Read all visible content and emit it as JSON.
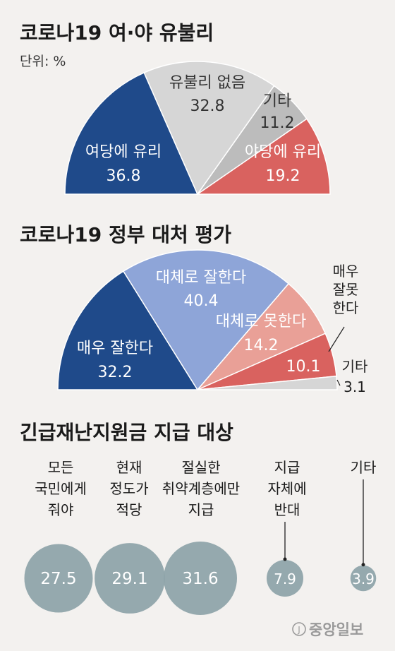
{
  "unit_label": "단위: %",
  "credit": "중앙일보",
  "chart_data": [
    {
      "type": "pie",
      "variant": "semicircle",
      "title": "코로나19 여·야 유불리",
      "slices": [
        {
          "label": "여당에 유리",
          "value": 36.8,
          "color": "#1f4a8a",
          "text_color": "#ffffff"
        },
        {
          "label": "유불리 없음",
          "value": 32.8,
          "color": "#d6d6d6",
          "text_color": "#333333"
        },
        {
          "label": "기타",
          "value": 11.2,
          "color": "#bcbcbc",
          "text_color": "#333333"
        },
        {
          "label": "야당에 유리",
          "value": 19.2,
          "color": "#d9625f",
          "text_color": "#ffffff"
        }
      ]
    },
    {
      "type": "pie",
      "variant": "semicircle",
      "title": "코로나19 정부 대처 평가",
      "slices": [
        {
          "label": "매우 잘한다",
          "value": 32.2,
          "color": "#1f4a8a",
          "text_color": "#ffffff"
        },
        {
          "label": "대체로 잘한다",
          "value": 40.4,
          "color": "#8ea5d8",
          "text_color": "#ffffff"
        },
        {
          "label": "대체로 못한다",
          "value": 14.2,
          "color": "#e9a097",
          "text_color": "#ffffff"
        },
        {
          "label": "매우 잘못 한다",
          "value": 10.1,
          "color": "#d9625f",
          "text_color": "#ffffff"
        },
        {
          "label": "기타",
          "value": 3.1,
          "color": "#d6d6d6",
          "text_color": "#333333"
        }
      ]
    },
    {
      "type": "bubble",
      "title": "긴급재난지원금 지급 대상",
      "color": "#8da3a8",
      "value_color": "#ffffff",
      "items": [
        {
          "label": "모든 국민에게 줘야",
          "value": 27.5
        },
        {
          "label": "현재 정도가 적당",
          "value": 29.1
        },
        {
          "label": "절실한 취약계층에만 지급",
          "value": 31.6
        },
        {
          "label": "지급 자체에 반대",
          "value": 7.9
        },
        {
          "label": "기타",
          "value": 3.9
        }
      ]
    }
  ]
}
